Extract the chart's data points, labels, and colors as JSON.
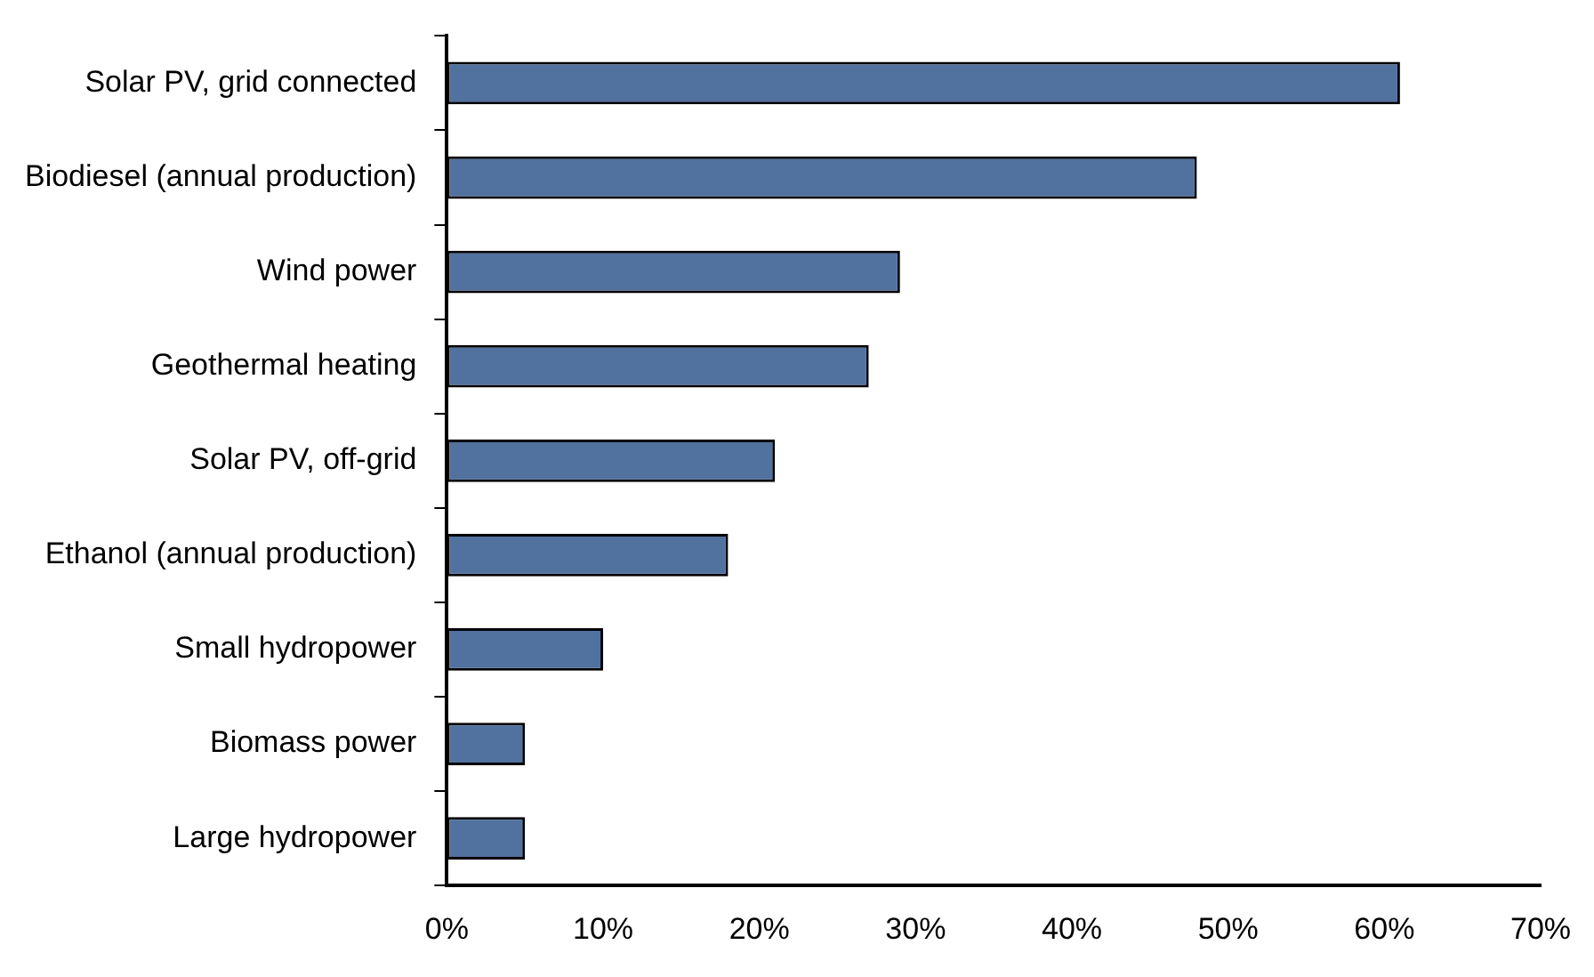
{
  "chart_data": {
    "type": "bar",
    "orientation": "horizontal",
    "categories": [
      "Solar PV, grid connected",
      "Biodiesel (annual production)",
      "Wind power",
      "Geothermal heating",
      "Solar PV, off-grid",
      "Ethanol (annual production)",
      "Small hydropower",
      "Biomass power",
      "Large hydropower"
    ],
    "values": [
      61,
      48,
      29,
      27,
      21,
      18,
      10,
      5,
      5
    ],
    "color": "#51719f",
    "xlim": [
      0,
      70
    ],
    "xticks": [
      {
        "value": 0,
        "label": "0%"
      },
      {
        "value": 10,
        "label": "10%"
      },
      {
        "value": 20,
        "label": "20%"
      },
      {
        "value": 30,
        "label": "30%"
      },
      {
        "value": 40,
        "label": "40%"
      },
      {
        "value": 50,
        "label": "50%"
      },
      {
        "value": 60,
        "label": "60%"
      },
      {
        "value": 70,
        "label": "70%"
      }
    ],
    "grid": false,
    "legend": false
  }
}
